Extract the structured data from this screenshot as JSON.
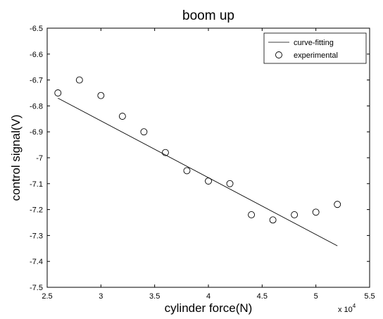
{
  "chart_data": {
    "type": "scatter",
    "title": "boom up",
    "xlabel": "cylinder force(N)",
    "ylabel": "control signal(V)",
    "x_multiplier": "x 10",
    "x_multiplier_exponent": "4",
    "xlim": [
      2.5,
      5.5
    ],
    "ylim": [
      -7.5,
      -6.5
    ],
    "x_ticks": [
      2.5,
      3,
      3.5,
      4,
      4.5,
      5,
      5.5
    ],
    "x_tick_labels": [
      "2.5",
      "3",
      "3.5",
      "4",
      "4.5",
      "5",
      "5.5"
    ],
    "y_ticks": [
      -6.5,
      -6.6,
      -6.7,
      -6.8,
      -6.9,
      -7,
      -7.1,
      -7.2,
      -7.3,
      -7.4,
      -7.5
    ],
    "y_tick_labels": [
      "-6.5",
      "-6.6",
      "-6.7",
      "-6.8",
      "-6.9",
      "-7",
      "-7.1",
      "-7.2",
      "-7.3",
      "-7.4",
      "-7.5"
    ],
    "grid": false,
    "legend_position": "top-right",
    "series": [
      {
        "name": "curve-fitting",
        "kind": "line",
        "x": [
          2.6,
          5.2
        ],
        "y": [
          -6.77,
          -7.34
        ]
      },
      {
        "name": "experimental",
        "kind": "marker",
        "x": [
          2.6,
          2.8,
          3.0,
          3.2,
          3.4,
          3.6,
          3.8,
          4.0,
          4.2,
          4.4,
          4.6,
          4.8,
          5.0,
          5.2
        ],
        "y": [
          -6.75,
          -6.7,
          -6.76,
          -6.84,
          -6.9,
          -6.98,
          -7.05,
          -7.09,
          -7.1,
          -7.22,
          -7.24,
          -7.22,
          -7.21,
          -7.18
        ]
      }
    ]
  }
}
